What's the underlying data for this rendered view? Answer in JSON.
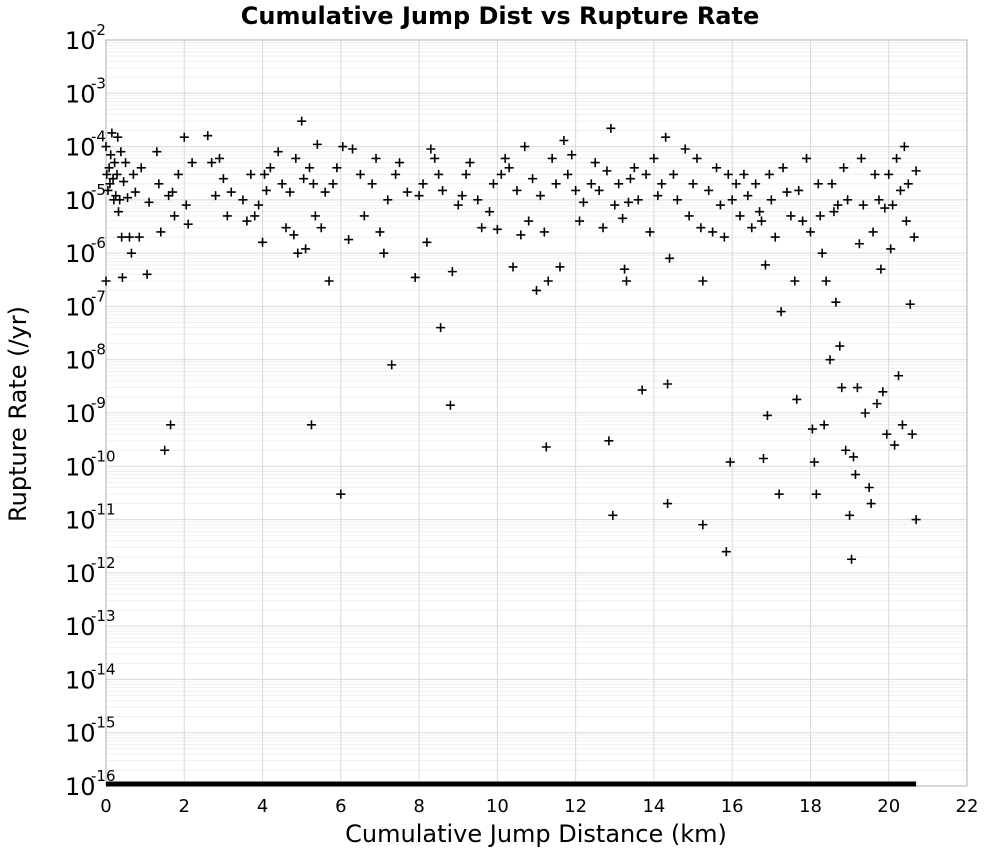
{
  "chart_data": {
    "type": "scatter",
    "title": "Cumulative Jump Dist vs Rupture Rate",
    "xlabel": "Cumulative Jump Distance (km)",
    "ylabel": "Rupture Rate (/yr)",
    "xlim": [
      0,
      22
    ],
    "ylim": [
      1e-16,
      0.01
    ],
    "yscale": "log",
    "x_ticks": [
      0,
      2,
      4,
      6,
      8,
      10,
      12,
      14,
      16,
      18,
      20,
      22
    ],
    "x_tick_labels": [
      "0",
      "2",
      "4",
      "6",
      "8",
      "10",
      "12",
      "14",
      "16",
      "18",
      "20",
      "22"
    ],
    "y_tick_exponents": [
      -2,
      -3,
      -4,
      -5,
      -6,
      -7,
      -8,
      -9,
      -10,
      -11,
      -12,
      -13,
      -14,
      -15,
      -16
    ],
    "y_tick_base": "10",
    "grid": true,
    "marker": "plus",
    "marker_color": "#000000",
    "baseline": {
      "y": 1e-16,
      "x_start": 0,
      "x_end": 20.7
    },
    "series": [
      {
        "points": [
          [
            0.0,
            3e-07
          ],
          [
            0.0,
            0.0001
          ],
          [
            0.02,
            3e-05
          ],
          [
            0.05,
            1.5e-05
          ],
          [
            0.08,
            4e-05
          ],
          [
            0.1,
            2e-05
          ],
          [
            0.12,
            7e-05
          ],
          [
            0.15,
            0.00018
          ],
          [
            0.18,
            2.5e-05
          ],
          [
            0.2,
            1e-05
          ],
          [
            0.22,
            5e-05
          ],
          [
            0.25,
            1.2e-05
          ],
          [
            0.28,
            3e-05
          ],
          [
            0.3,
            0.00015
          ],
          [
            0.32,
            6e-06
          ],
          [
            0.35,
            1e-05
          ],
          [
            0.38,
            8e-05
          ],
          [
            0.4,
            2e-06
          ],
          [
            0.42,
            3.5e-07
          ],
          [
            0.45,
            2.2e-05
          ],
          [
            0.5,
            5e-05
          ],
          [
            0.55,
            1.1e-05
          ],
          [
            0.6,
            2e-06
          ],
          [
            0.65,
            1e-06
          ],
          [
            0.7,
            3e-05
          ],
          [
            0.75,
            1.4e-05
          ],
          [
            0.85,
            2e-06
          ],
          [
            0.9,
            4e-05
          ],
          [
            1.05,
            4e-07
          ],
          [
            1.1,
            9e-06
          ],
          [
            1.3,
            8e-05
          ],
          [
            1.35,
            2e-05
          ],
          [
            1.4,
            2.5e-06
          ],
          [
            1.5,
            2e-10
          ],
          [
            1.6,
            1.2e-05
          ],
          [
            1.65,
            6e-10
          ],
          [
            1.7,
            1.4e-05
          ],
          [
            1.75,
            5e-06
          ],
          [
            1.85,
            3e-05
          ],
          [
            2.0,
            0.00015
          ],
          [
            2.05,
            8e-06
          ],
          [
            2.1,
            3.5e-06
          ],
          [
            2.2,
            5e-05
          ],
          [
            2.6,
            0.00016
          ],
          [
            2.7,
            5e-05
          ],
          [
            2.8,
            1.2e-05
          ],
          [
            2.9,
            6e-05
          ],
          [
            3.0,
            2.5e-05
          ],
          [
            3.1,
            5e-06
          ],
          [
            3.2,
            1.4e-05
          ],
          [
            3.5,
            1e-05
          ],
          [
            3.6,
            4e-06
          ],
          [
            3.7,
            3e-05
          ],
          [
            3.8,
            5e-06
          ],
          [
            3.9,
            8e-06
          ],
          [
            4.0,
            1.6e-06
          ],
          [
            4.05,
            3e-05
          ],
          [
            4.1,
            1.5e-05
          ],
          [
            4.2,
            4e-05
          ],
          [
            4.4,
            8e-05
          ],
          [
            4.5,
            2e-05
          ],
          [
            4.6,
            3e-06
          ],
          [
            4.7,
            1.4e-05
          ],
          [
            4.8,
            2.2e-06
          ],
          [
            4.85,
            6e-05
          ],
          [
            4.9,
            1e-06
          ],
          [
            5.0,
            0.0003
          ],
          [
            5.05,
            2.5e-05
          ],
          [
            5.1,
            1.2e-06
          ],
          [
            5.2,
            4e-05
          ],
          [
            5.25,
            6e-10
          ],
          [
            5.3,
            2e-05
          ],
          [
            5.35,
            5e-06
          ],
          [
            5.4,
            0.00011
          ],
          [
            5.5,
            3e-06
          ],
          [
            5.6,
            1.4e-05
          ],
          [
            5.7,
            3e-07
          ],
          [
            5.8,
            2e-05
          ],
          [
            5.9,
            4e-05
          ],
          [
            6.0,
            3e-11
          ],
          [
            6.05,
            0.0001
          ],
          [
            6.2,
            1.8e-06
          ],
          [
            6.3,
            9e-05
          ],
          [
            6.5,
            3e-05
          ],
          [
            6.6,
            5e-06
          ],
          [
            6.8,
            2e-05
          ],
          [
            6.9,
            6e-05
          ],
          [
            7.0,
            2.5e-06
          ],
          [
            7.1,
            1e-06
          ],
          [
            7.2,
            1e-05
          ],
          [
            7.3,
            8e-09
          ],
          [
            7.4,
            3e-05
          ],
          [
            7.5,
            5e-05
          ],
          [
            7.7,
            1.4e-05
          ],
          [
            7.9,
            3.5e-07
          ],
          [
            8.0,
            1.2e-05
          ],
          [
            8.1,
            2e-05
          ],
          [
            8.2,
            1.6e-06
          ],
          [
            8.3,
            9e-05
          ],
          [
            8.4,
            6e-05
          ],
          [
            8.5,
            3e-05
          ],
          [
            8.55,
            4e-08
          ],
          [
            8.6,
            1.5e-05
          ],
          [
            8.8,
            1.4e-09
          ],
          [
            8.85,
            4.5e-07
          ],
          [
            9.0,
            8e-06
          ],
          [
            9.1,
            1.2e-05
          ],
          [
            9.2,
            3e-05
          ],
          [
            9.3,
            5e-05
          ],
          [
            9.5,
            1e-05
          ],
          [
            9.6,
            3e-06
          ],
          [
            9.8,
            6e-06
          ],
          [
            9.9,
            2e-05
          ],
          [
            10.0,
            2.8e-06
          ],
          [
            10.1,
            3e-05
          ],
          [
            10.2,
            6e-05
          ],
          [
            10.3,
            4e-05
          ],
          [
            10.4,
            5.5e-07
          ],
          [
            10.5,
            1.5e-05
          ],
          [
            10.6,
            2.2e-06
          ],
          [
            10.7,
            0.0001
          ],
          [
            10.8,
            4e-06
          ],
          [
            10.9,
            2.5e-05
          ],
          [
            11.0,
            2e-07
          ],
          [
            11.1,
            1.2e-05
          ],
          [
            11.2,
            2.5e-06
          ],
          [
            11.25,
            2.3e-10
          ],
          [
            11.3,
            3e-07
          ],
          [
            11.4,
            6e-05
          ],
          [
            11.5,
            2e-05
          ],
          [
            11.6,
            5.5e-07
          ],
          [
            11.7,
            0.00013
          ],
          [
            11.8,
            3e-05
          ],
          [
            11.9,
            7e-05
          ],
          [
            12.0,
            1.5e-05
          ],
          [
            12.1,
            4e-06
          ],
          [
            12.2,
            9e-06
          ],
          [
            12.4,
            2e-05
          ],
          [
            12.5,
            5e-05
          ],
          [
            12.6,
            1.5e-05
          ],
          [
            12.7,
            3e-06
          ],
          [
            12.8,
            3.5e-05
          ],
          [
            12.85,
            3e-10
          ],
          [
            12.9,
            0.00022
          ],
          [
            12.95,
            1.2e-11
          ],
          [
            13.0,
            8e-06
          ],
          [
            13.1,
            2e-05
          ],
          [
            13.2,
            4.5e-06
          ],
          [
            13.25,
            5e-07
          ],
          [
            13.3,
            3e-07
          ],
          [
            13.35,
            9e-06
          ],
          [
            13.4,
            2.5e-05
          ],
          [
            13.5,
            4e-05
          ],
          [
            13.6,
            1e-05
          ],
          [
            13.7,
            2.7e-09
          ],
          [
            13.8,
            3e-05
          ],
          [
            13.9,
            2.5e-06
          ],
          [
            14.0,
            6e-05
          ],
          [
            14.1,
            1.2e-05
          ],
          [
            14.2,
            2e-05
          ],
          [
            14.3,
            0.00015
          ],
          [
            14.35,
            3.5e-09
          ],
          [
            14.35,
            2e-11
          ],
          [
            14.4,
            8e-07
          ],
          [
            14.5,
            3e-05
          ],
          [
            14.6,
            1e-05
          ],
          [
            14.8,
            9e-05
          ],
          [
            14.9,
            5e-06
          ],
          [
            15.0,
            2e-05
          ],
          [
            15.1,
            6e-05
          ],
          [
            15.2,
            3e-06
          ],
          [
            15.25,
            3e-07
          ],
          [
            15.25,
            8e-12
          ],
          [
            15.4,
            1.5e-05
          ],
          [
            15.5,
            2.5e-06
          ],
          [
            15.6,
            4e-05
          ],
          [
            15.7,
            8e-06
          ],
          [
            15.8,
            2e-06
          ],
          [
            15.85,
            2.5e-12
          ],
          [
            15.9,
            3e-05
          ],
          [
            15.95,
            1.2e-10
          ],
          [
            16.0,
            1e-05
          ],
          [
            16.1,
            2e-05
          ],
          [
            16.2,
            5e-06
          ],
          [
            16.3,
            3e-05
          ],
          [
            16.4,
            1.2e-05
          ],
          [
            16.5,
            3e-06
          ],
          [
            16.6,
            2e-05
          ],
          [
            16.7,
            6e-06
          ],
          [
            16.75,
            4e-06
          ],
          [
            16.8,
            1.4e-10
          ],
          [
            16.85,
            6e-07
          ],
          [
            16.9,
            9e-10
          ],
          [
            16.95,
            3e-05
          ],
          [
            17.0,
            1e-05
          ],
          [
            17.1,
            2e-06
          ],
          [
            17.2,
            3e-11
          ],
          [
            17.25,
            8e-08
          ],
          [
            17.3,
            4e-05
          ],
          [
            17.4,
            1.4e-05
          ],
          [
            17.5,
            5e-06
          ],
          [
            17.6,
            3e-07
          ],
          [
            17.65,
            1.8e-09
          ],
          [
            17.7,
            1.5e-05
          ],
          [
            17.8,
            4e-06
          ],
          [
            17.9,
            6e-05
          ],
          [
            18.0,
            2.5e-06
          ],
          [
            18.05,
            5e-10
          ],
          [
            18.1,
            1.2e-10
          ],
          [
            18.15,
            3e-11
          ],
          [
            18.2,
            2e-05
          ],
          [
            18.25,
            5e-06
          ],
          [
            18.3,
            1e-06
          ],
          [
            18.35,
            6e-10
          ],
          [
            18.4,
            3e-07
          ],
          [
            18.5,
            1e-08
          ],
          [
            18.55,
            2e-05
          ],
          [
            18.6,
            6e-06
          ],
          [
            18.65,
            1.2e-07
          ],
          [
            18.7,
            8e-06
          ],
          [
            18.75,
            1.8e-08
          ],
          [
            18.8,
            3e-09
          ],
          [
            18.85,
            4e-05
          ],
          [
            18.9,
            2e-10
          ],
          [
            18.95,
            1e-05
          ],
          [
            19.0,
            1.2e-11
          ],
          [
            19.05,
            1.8e-12
          ],
          [
            19.1,
            1.5e-10
          ],
          [
            19.15,
            7e-11
          ],
          [
            19.2,
            3e-09
          ],
          [
            19.25,
            1.5e-06
          ],
          [
            19.3,
            6e-05
          ],
          [
            19.35,
            8e-06
          ],
          [
            19.4,
            1e-09
          ],
          [
            19.5,
            4e-11
          ],
          [
            19.55,
            2e-11
          ],
          [
            19.6,
            2.5e-06
          ],
          [
            19.65,
            3e-05
          ],
          [
            19.7,
            1.5e-09
          ],
          [
            19.75,
            1e-05
          ],
          [
            19.8,
            5e-07
          ],
          [
            19.85,
            2.5e-09
          ],
          [
            19.9,
            7e-06
          ],
          [
            19.95,
            4e-10
          ],
          [
            20.0,
            3e-05
          ],
          [
            20.05,
            1.2e-06
          ],
          [
            20.1,
            8e-06
          ],
          [
            20.15,
            2.5e-10
          ],
          [
            20.2,
            6e-05
          ],
          [
            20.25,
            5e-09
          ],
          [
            20.3,
            1.5e-05
          ],
          [
            20.35,
            6e-10
          ],
          [
            20.4,
            0.0001
          ],
          [
            20.45,
            4e-06
          ],
          [
            20.5,
            2e-05
          ],
          [
            20.55,
            1.1e-07
          ],
          [
            20.6,
            4e-10
          ],
          [
            20.65,
            2e-06
          ],
          [
            20.7,
            1e-11
          ],
          [
            20.7,
            3.5e-05
          ]
        ]
      }
    ]
  }
}
